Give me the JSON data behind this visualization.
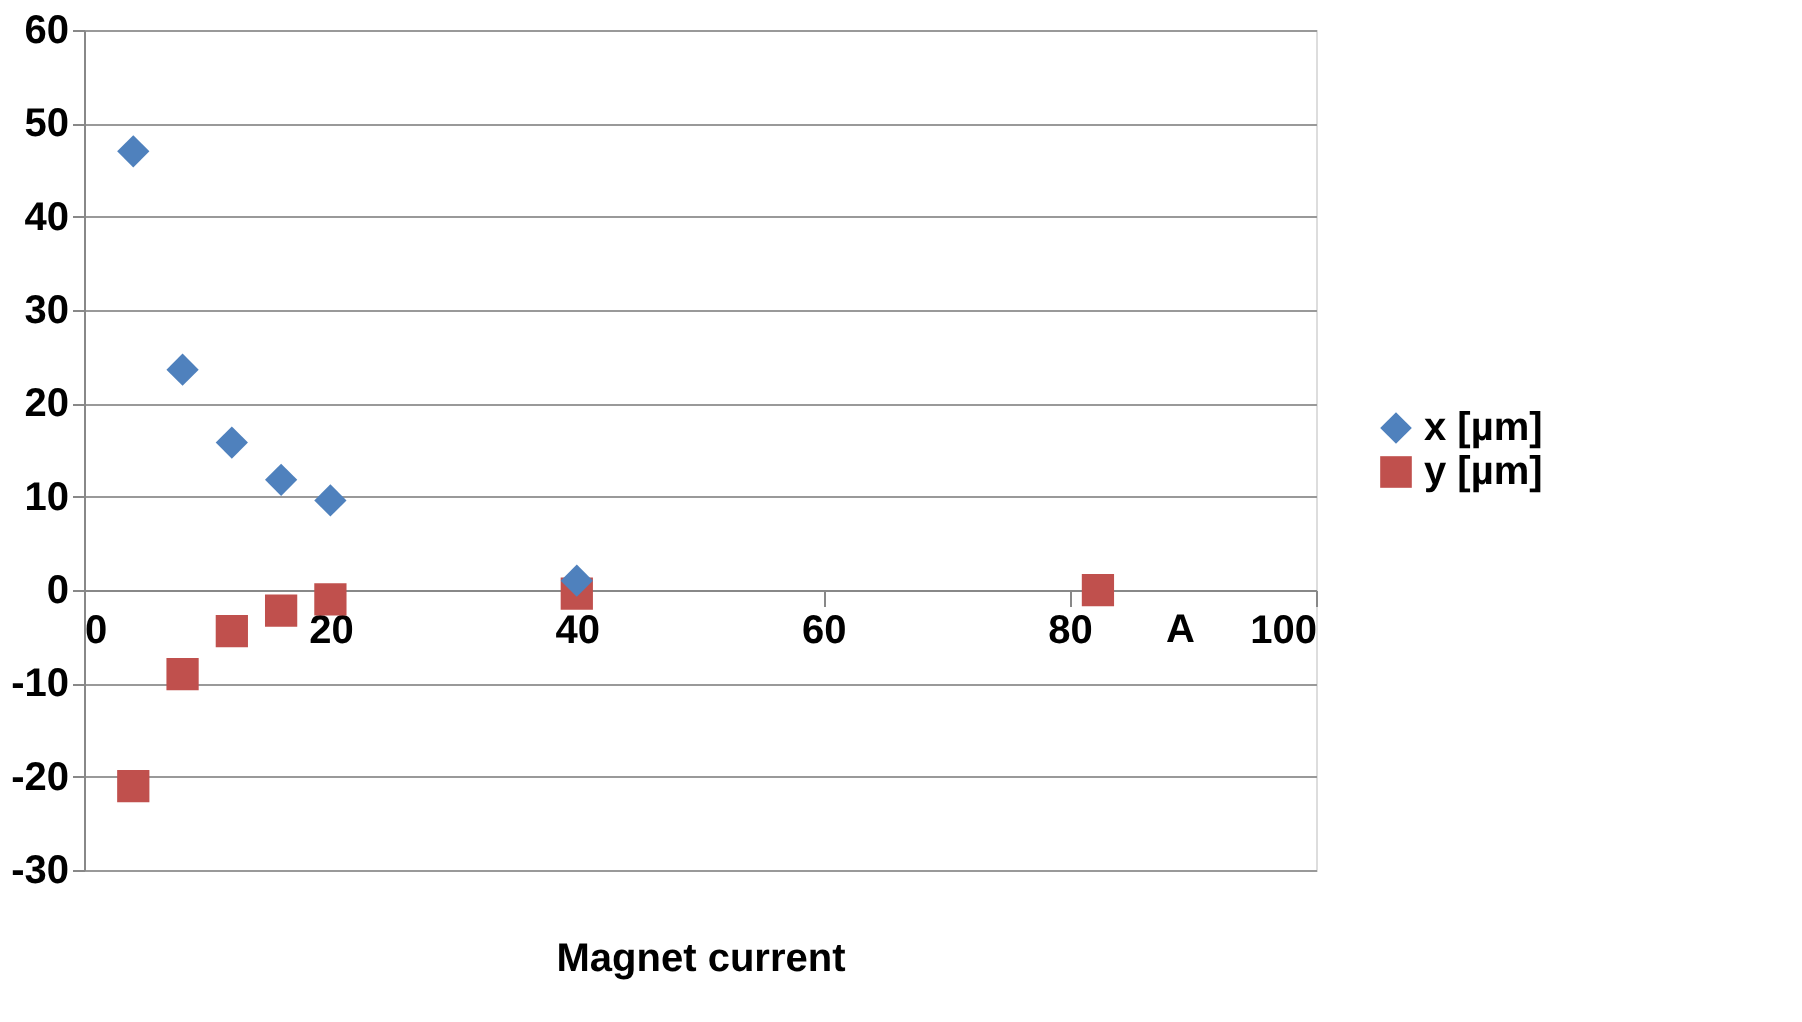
{
  "chart_data": {
    "type": "scatter",
    "xlabel": "Magnet current",
    "annotations": [
      "A"
    ],
    "xlim": [
      0,
      100
    ],
    "xticks": [
      0,
      20,
      40,
      60,
      80,
      100
    ],
    "ylim": [
      -30,
      60
    ],
    "yticks": [
      -30,
      -20,
      -10,
      0,
      10,
      20,
      30,
      40,
      50,
      60
    ],
    "grid": "y",
    "legend": "right",
    "series": [
      {
        "name": "x [µm]",
        "color": "#4f81bd",
        "marker": "diamond",
        "x": [
          4,
          8,
          12,
          16,
          20,
          40
        ],
        "values": [
          47,
          23.6,
          15.8,
          11.8,
          9.6,
          1
        ]
      },
      {
        "name": "y [µm]",
        "color": "#c0504d",
        "marker": "square",
        "x": [
          4,
          8,
          12,
          16,
          20,
          40,
          82.3
        ],
        "values": [
          -21,
          -9,
          -4.4,
          -2.2,
          -1,
          -0.4,
          0
        ]
      }
    ]
  }
}
